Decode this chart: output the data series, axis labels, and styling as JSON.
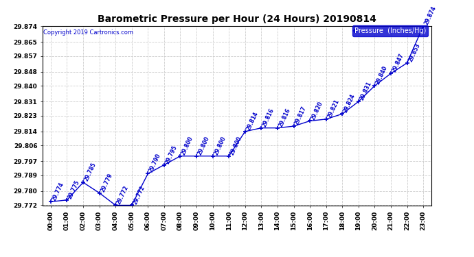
{
  "title": "Barometric Pressure per Hour (24 Hours) 20190814",
  "copyright": "Copyright 2019 Cartronics.com",
  "legend_label": "Pressure  (Inches/Hg)",
  "hours": [
    0,
    1,
    2,
    3,
    4,
    5,
    6,
    7,
    8,
    9,
    10,
    11,
    12,
    13,
    14,
    15,
    16,
    17,
    18,
    19,
    20,
    21,
    22,
    23
  ],
  "hour_labels": [
    "00:00",
    "01:00",
    "02:00",
    "03:00",
    "04:00",
    "05:00",
    "06:00",
    "07:00",
    "08:00",
    "09:00",
    "10:00",
    "11:00",
    "12:00",
    "13:00",
    "14:00",
    "15:00",
    "16:00",
    "17:00",
    "18:00",
    "19:00",
    "20:00",
    "21:00",
    "22:00",
    "23:00"
  ],
  "pressure": [
    29.774,
    29.775,
    29.785,
    29.779,
    29.772,
    29.772,
    29.79,
    29.795,
    29.8,
    29.8,
    29.8,
    29.8,
    29.814,
    29.816,
    29.816,
    29.817,
    29.82,
    29.821,
    29.824,
    29.831,
    29.84,
    29.847,
    29.853,
    29.874
  ],
  "ylim_min": 29.772,
  "ylim_max": 29.874,
  "line_color": "#0000cc",
  "marker_color": "#0000cc",
  "bg_color": "#ffffff",
  "grid_color": "#cccccc",
  "annotation_color": "#0000cc",
  "copyright_color": "#0000cc",
  "title_fontsize": 10,
  "annotation_fontsize": 5.5,
  "tick_fontsize": 6.5,
  "ytick_values": [
    29.772,
    29.78,
    29.789,
    29.797,
    29.806,
    29.814,
    29.823,
    29.831,
    29.84,
    29.848,
    29.857,
    29.865,
    29.874
  ]
}
